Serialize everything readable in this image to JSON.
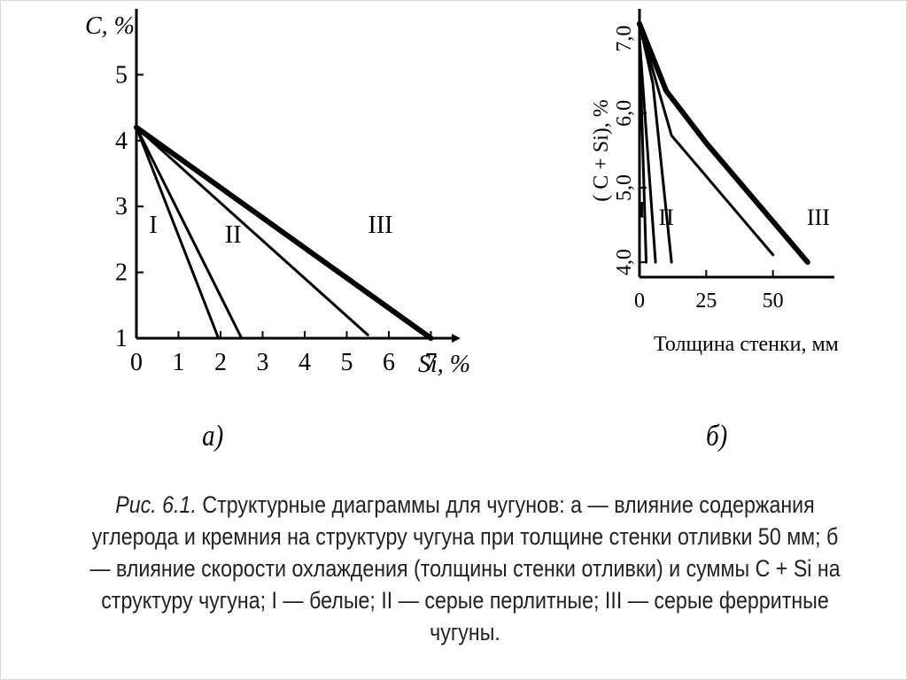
{
  "figure": {
    "panel_a_label": "а)",
    "panel_b_label": "б)",
    "caption_prefix": "Рис. 6.1.",
    "caption_text": "Структурные диаграммы для чугунов: а — влияние содержания углерода и кремния на структуру чугуна при толщине стенки отливки 50 мм; б — влияние скорости охлаждения (толщины стенки отливки) и суммы C + Si на структуру чугуна; I — белые; II — серые перлитные; III — серые ферритные чугуны."
  },
  "chart_data": [
    {
      "type": "line",
      "xlabel": "Si, %",
      "ylabel": "C, %",
      "xlim": [
        0,
        8
      ],
      "ylim": [
        1,
        6
      ],
      "x_ticks": [
        "0",
        "1",
        "2",
        "3",
        "4",
        "5",
        "6",
        "7"
      ],
      "y_ticks": [
        "1",
        "2",
        "3",
        "4",
        "5"
      ],
      "series": [
        {
          "values": [
            [
              0,
              4.2
            ],
            [
              1.95,
              1.0
            ]
          ]
        },
        {
          "values": [
            [
              0,
              4.2
            ],
            [
              2.5,
              1.0
            ]
          ]
        },
        {
          "values": [
            [
              0,
              4.2
            ],
            [
              5.5,
              1.05
            ]
          ]
        },
        {
          "values": [
            [
              0,
              4.2
            ],
            [
              7.0,
              1.0
            ]
          ],
          "bold": true
        }
      ],
      "region_labels": [
        {
          "text": "I",
          "x": 0.4,
          "y": 2.6
        },
        {
          "text": "II",
          "x": 2.3,
          "y": 2.45
        },
        {
          "text": "III",
          "x": 5.8,
          "y": 2.6
        }
      ]
    },
    {
      "type": "line",
      "xlabel": "Толщина стенки, мм",
      "ylabel": "( C + Si), %",
      "xlim": [
        0,
        75
      ],
      "ylim": [
        3.8,
        7.4
      ],
      "x_ticks": [
        "0",
        "25",
        "50"
      ],
      "y_ticks": [
        "4,0",
        "5,0",
        "6,0",
        "7,0"
      ],
      "series": [
        {
          "values": [
            [
              0,
              7.0
            ],
            [
              2.5,
              4.0
            ]
          ]
        },
        {
          "values": [
            [
              0,
              7.0
            ],
            [
              6,
              4.0
            ]
          ]
        },
        {
          "values": [
            [
              0,
              7.2
            ],
            [
              5,
              6.4
            ],
            [
              12,
              4.0
            ]
          ]
        },
        {
          "values": [
            [
              0,
              7.2
            ],
            [
              12,
              5.7
            ],
            [
              50,
              4.1
            ]
          ]
        },
        {
          "values": [
            [
              0,
              7.2
            ],
            [
              10,
              6.3
            ],
            [
              25,
              5.6
            ],
            [
              63,
              4.0
            ]
          ],
          "bold": true
        }
      ],
      "region_labels": [
        {
          "text": "I",
          "x": 0.9,
          "y": 4.6
        },
        {
          "text": "II",
          "x": 10,
          "y": 4.5
        },
        {
          "text": "III",
          "x": 67,
          "y": 4.5
        }
      ]
    }
  ]
}
